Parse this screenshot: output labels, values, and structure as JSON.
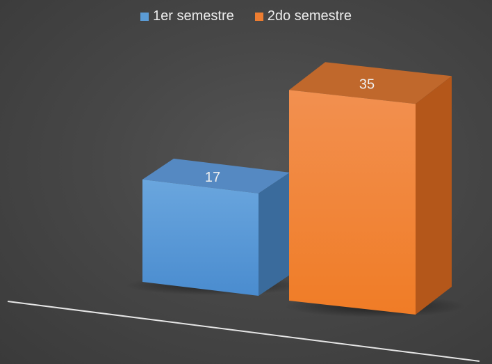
{
  "chart_data": {
    "type": "bar",
    "categories": [
      ""
    ],
    "series": [
      {
        "name": "1er semestre",
        "values": [
          17
        ],
        "color": "#5b9bd5"
      },
      {
        "name": "2do semestre",
        "values": [
          35
        ],
        "color": "#ed7d31"
      }
    ],
    "ylim": [
      0,
      35
    ],
    "grid": false,
    "legend_position": "top",
    "render_3d": true
  },
  "legend": {
    "series_1": "1er semestre",
    "series_2": "2do semestre"
  },
  "labels": {
    "series_1_value": "17",
    "series_2_value": "35"
  }
}
